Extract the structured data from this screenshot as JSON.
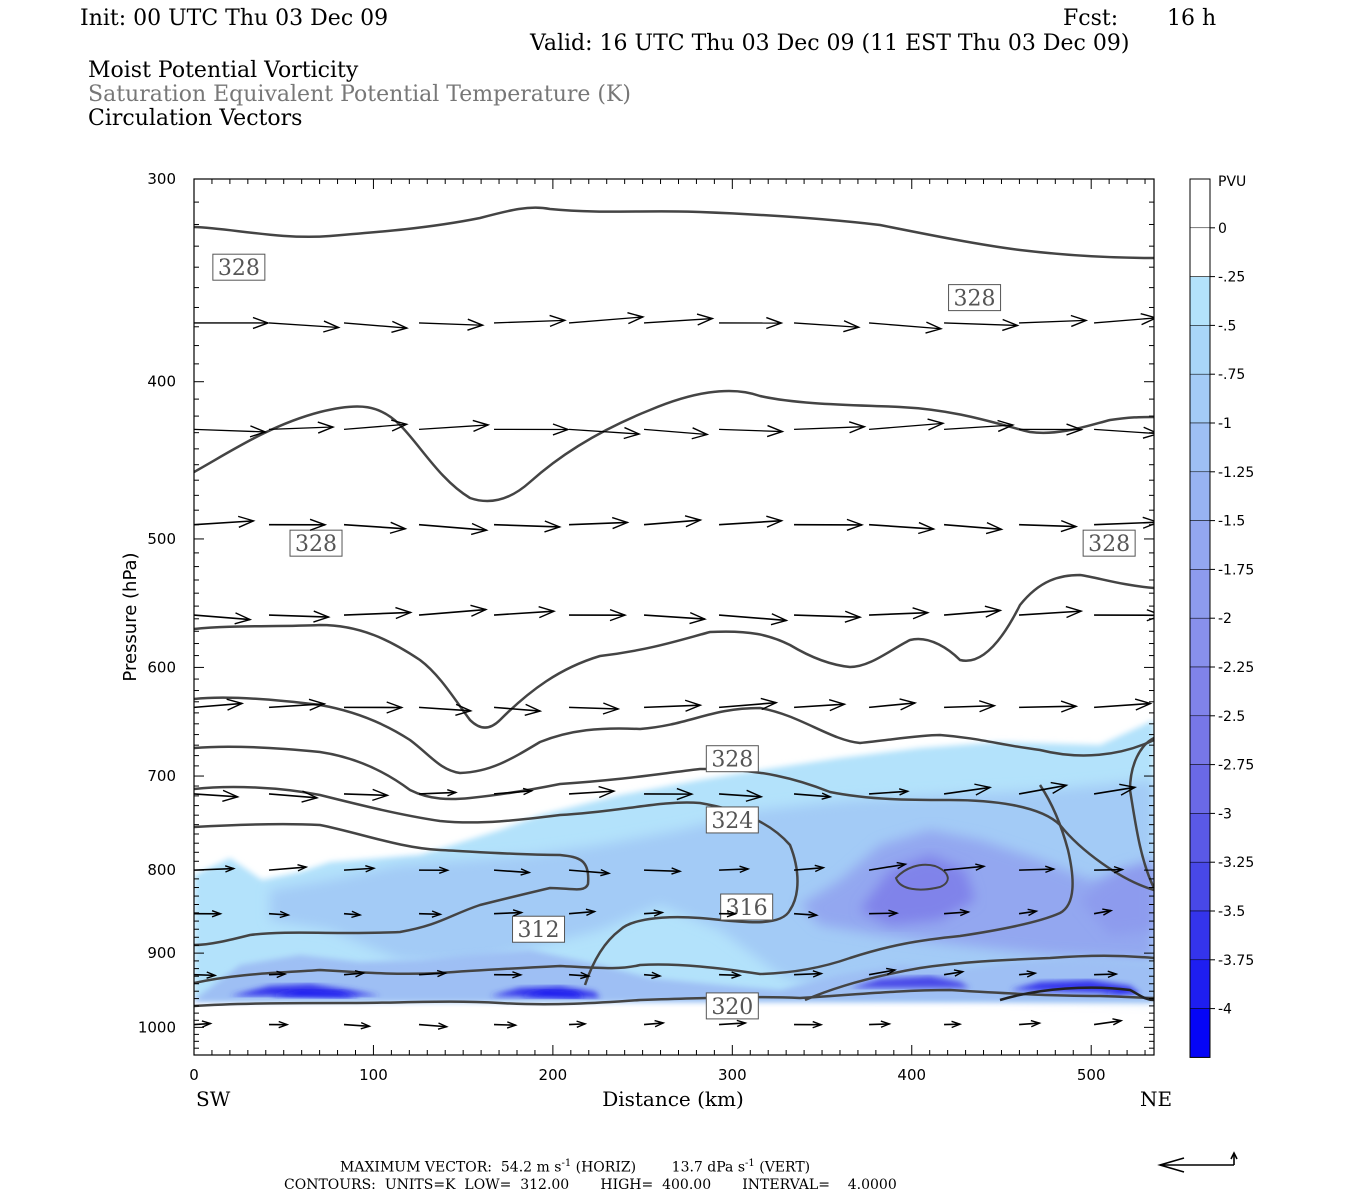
{
  "header": {
    "init": "Init: 00 UTC Thu 03 Dec 09",
    "fcst_label": "Fcst:",
    "fcst_value": "16 h",
    "valid": "Valid: 16 UTC Thu 03 Dec 09 (11 EST Thu 03 Dec 09)",
    "field1": "Moist Potential Vorticity",
    "field2": "Saturation Equivalent Potential Temperature (K)",
    "field3": "Circulation Vectors"
  },
  "chart_data": {
    "type": "cross-section",
    "xlabel": "Distance (km)",
    "ylabel": "Pressure (hPa)",
    "xlim": [
      0,
      535
    ],
    "ylim": [
      300,
      1040
    ],
    "y_scale": "log-pressure (inverted)",
    "x_ticks": [
      "0",
      "100",
      "200",
      "300",
      "400",
      "500"
    ],
    "x_tick_values": [
      0,
      100,
      200,
      300,
      400,
      500
    ],
    "y_ticks": [
      "300",
      "400",
      "500",
      "600",
      "700",
      "800",
      "900",
      "1000"
    ],
    "y_tick_values": [
      300,
      400,
      500,
      600,
      700,
      800,
      900,
      1000
    ],
    "left_end_label": "SW",
    "right_end_label": "NE",
    "colorbar": {
      "unit": "PVU",
      "levels": [
        "0",
        "-.25",
        "-.5",
        "-.75",
        "-1",
        "-1.25",
        "-1.5",
        "-1.75",
        "-2",
        "-2.25",
        "-2.5",
        "-2.75",
        "-3",
        "-3.25",
        "-3.5",
        "-3.75",
        "-4"
      ],
      "colors": [
        "#ffffff",
        "#ffffff",
        "#b3e2fb",
        "#a9d6f8",
        "#a3cbf6",
        "#9ebff4",
        "#98b3f2",
        "#93a7f0",
        "#8d9bee",
        "#8890ec",
        "#8083ea",
        "#7777e8",
        "#6a69e6",
        "#5a59e6",
        "#4848e8",
        "#3434ec",
        "#1e1ef0",
        "#0505f6"
      ]
    },
    "contours": {
      "units": "K",
      "low": 312,
      "high": 400,
      "interval": 4,
      "labels": [
        {
          "text": "328",
          "x": 25,
          "p": 340
        },
        {
          "text": "328",
          "x": 435,
          "p": 355
        },
        {
          "text": "328",
          "x": 68,
          "p": 503
        },
        {
          "text": "328",
          "x": 510,
          "p": 503
        },
        {
          "text": "328",
          "x": 300,
          "p": 683
        },
        {
          "text": "324",
          "x": 300,
          "p": 745
        },
        {
          "text": "316",
          "x": 308,
          "p": 843
        },
        {
          "text": "312",
          "x": 192,
          "p": 870
        },
        {
          "text": "320",
          "x": 300,
          "p": 970
        }
      ]
    },
    "vectors": {
      "scale_note": "reference arrow",
      "max_horiz_label": "MAXIMUM VECTOR:",
      "max_horiz": "54.2 m s",
      "max_horiz_exp": "-1",
      "max_horiz_tag": "(HORIZ)",
      "max_vert": "13.7 dPa s",
      "max_vert_exp": "-1",
      "max_vert_tag": "(VERT)"
    },
    "contour_footer": {
      "label": "CONTOURS:",
      "units": "UNITS=K",
      "low": "LOW=  312.00",
      "high": "HIGH=  400.00",
      "interval": "INTERVAL=    4.0000"
    }
  }
}
